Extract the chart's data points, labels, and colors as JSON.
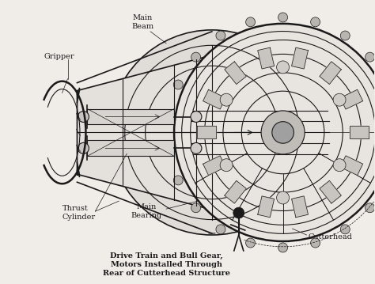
{
  "background_color": "#f0ece8",
  "line_color": "#1a1a1a",
  "figure_width": 4.74,
  "figure_height": 3.59,
  "dpi": 100,
  "gripper_label": "Gripper",
  "main_beam_label": "Main\nBeam",
  "thrust_cyl_label": "Thrust\nCylinder",
  "main_bearing_label": "Main\nBearing",
  "cutterhead_label": "Cutterhead",
  "drive_train_label": "Drive Train and Bull Gear,\nMotors Installed Through\nRear of Cutterhead Structure",
  "label_fontsize": 7.0,
  "drive_train_fontsize": 7.0
}
